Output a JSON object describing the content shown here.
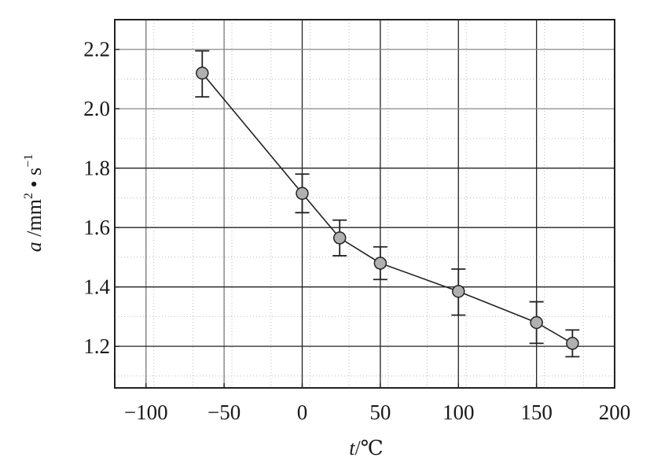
{
  "chart_data": {
    "type": "line",
    "title": "",
    "xlabel": {
      "var": "t",
      "unit": "/℃"
    },
    "ylabel": {
      "var": "a",
      "unit": " /mm",
      "sup1": "2",
      "mid": " • s",
      "sup2": "−1"
    },
    "xlim": [
      -120,
      200
    ],
    "ylim": [
      1.06,
      2.3
    ],
    "xticks": [
      -100,
      -50,
      0,
      50,
      100,
      150,
      200
    ],
    "xtick_labels": [
      "−100",
      "−50",
      "0",
      "50",
      "100",
      "150",
      "200"
    ],
    "yticks": [
      1.2,
      1.4,
      1.6,
      1.8,
      2.0,
      2.2
    ],
    "ytick_labels": [
      "1.2",
      "1.4",
      "1.6",
      "1.8",
      "2.0",
      "2.2"
    ],
    "grid": true,
    "legend": "none",
    "series": [
      {
        "marker": "circle",
        "x": [
          -64,
          0,
          24,
          50,
          100,
          150,
          173
        ],
        "y": [
          2.12,
          1.715,
          1.565,
          1.48,
          1.385,
          1.28,
          1.21
        ],
        "err_low": [
          2.04,
          1.65,
          1.505,
          1.425,
          1.305,
          1.21,
          1.165
        ],
        "err_high": [
          2.195,
          1.78,
          1.625,
          1.535,
          1.46,
          1.35,
          1.255
        ]
      }
    ]
  }
}
